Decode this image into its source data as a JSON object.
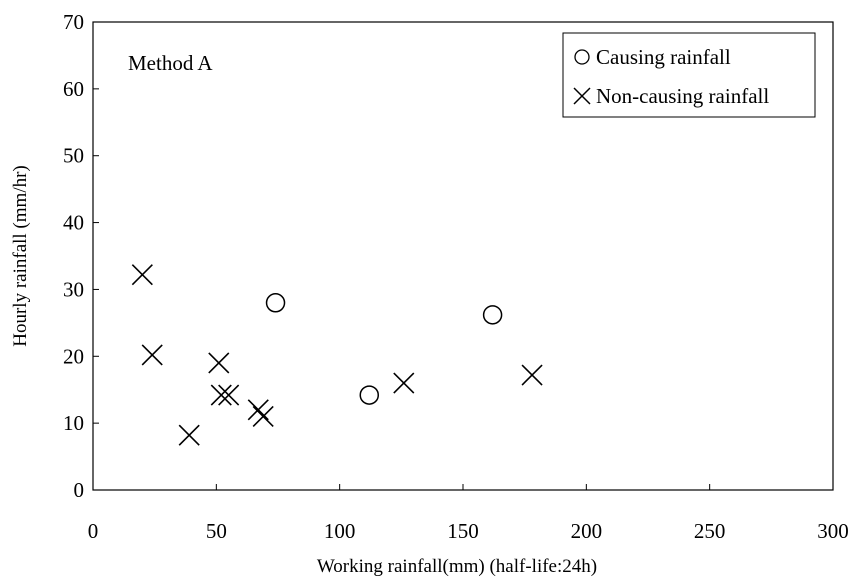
{
  "chart_data": {
    "type": "scatter",
    "title": "",
    "annotation": "Method A",
    "xlabel": "Working rainfall(mm) (half-life:24h)",
    "ylabel": "Hourly rainfall (mm/hr)",
    "xlim": [
      0,
      300
    ],
    "ylim": [
      0,
      70
    ],
    "xticks": [
      0,
      50,
      100,
      150,
      200,
      250,
      300
    ],
    "yticks": [
      0,
      10,
      20,
      30,
      40,
      50,
      60,
      70
    ],
    "grid": false,
    "legend_position": "top-right",
    "series": [
      {
        "name": "Causing rainfall",
        "marker": "circle",
        "points": [
          [
            74,
            28
          ],
          [
            112,
            14.2
          ],
          [
            162,
            26.2
          ]
        ]
      },
      {
        "name": "Non-causing rainfall",
        "marker": "x",
        "points": [
          [
            20,
            32.2
          ],
          [
            24,
            20.2
          ],
          [
            39,
            8.2
          ],
          [
            51,
            19
          ],
          [
            52,
            14.2
          ],
          [
            55,
            14.2
          ],
          [
            67,
            12
          ],
          [
            69,
            11
          ],
          [
            126,
            16
          ],
          [
            178,
            17.2
          ]
        ]
      }
    ]
  }
}
